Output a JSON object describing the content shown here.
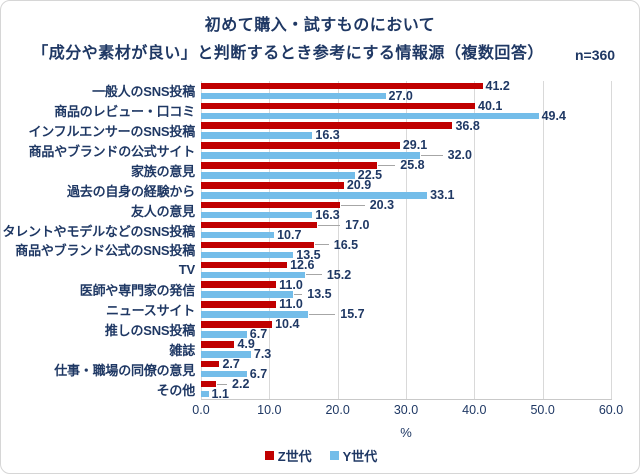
{
  "title": {
    "line1": "初めて購入・試すものにおいて",
    "line2": "「成分や素材が良い」と判断するとき参考にする情報源（複数回答）",
    "sample": "n=360"
  },
  "chart_data": {
    "type": "bar",
    "orientation": "horizontal",
    "title": "初めて購入・試すものにおいて「成分や素材が良い」と判断するとき参考にする情報源（複数回答） n=360",
    "categories": [
      "一般人のSNS投稿",
      "商品のレビュー・口コミ",
      "インフルエンサーのSNS投稿",
      "商品やブランドの公式サイト",
      "家族の意見",
      "過去の自身の経験から",
      "友人の意見",
      "タレントやモデルなどのSNS投稿",
      "商品やブランド公式のSNS投稿",
      "TV",
      "医師や専門家の発信",
      "ニュースサイト",
      "推しのSNS投稿",
      "雑誌",
      "仕事・職場の同僚の意見",
      "その他"
    ],
    "series": [
      {
        "name": "Z世代",
        "color": "#C00000",
        "values": [
          41.2,
          40.1,
          36.8,
          29.1,
          25.8,
          20.9,
          20.3,
          17.0,
          16.5,
          12.6,
          11.0,
          11.0,
          10.4,
          4.9,
          2.7,
          2.2
        ],
        "label_offsets": [
          0,
          0,
          0,
          0,
          17,
          0,
          24,
          22,
          14,
          0,
          0,
          0,
          0,
          0,
          0,
          10
        ]
      },
      {
        "name": "Y世代",
        "color": "#74BDE9",
        "values": [
          27.0,
          49.4,
          16.3,
          32.0,
          22.5,
          33.1,
          16.3,
          10.7,
          13.5,
          15.2,
          13.5,
          15.7,
          6.7,
          7.3,
          6.7,
          1.1
        ],
        "label_offsets": [
          0,
          0,
          0,
          22,
          0,
          0,
          0,
          0,
          0,
          16,
          8,
          26,
          0,
          0,
          0,
          0
        ]
      }
    ],
    "xlabel": "%",
    "x_ticks": [
      "0.0",
      "10.0",
      "20.0",
      "30.0",
      "40.0",
      "50.0",
      "60.0"
    ],
    "xlim": [
      0,
      60
    ],
    "grid": "vertical",
    "legend_position": "bottom"
  },
  "colors": {
    "text": "#1F3864",
    "gridline": "#D9D9D9",
    "axis_line": "#C9C9C9",
    "leader_line": "#A6A6A6",
    "border": "#D6D6D6",
    "background": "#FFFFFF"
  }
}
